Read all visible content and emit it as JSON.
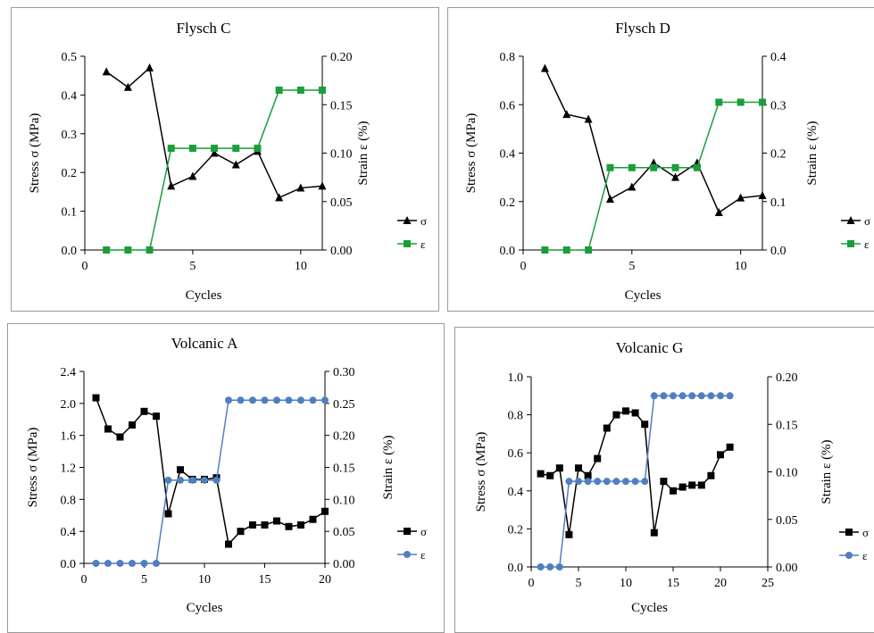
{
  "charts": [
    {
      "title": "Flysch C",
      "xlabel": "Cycles",
      "ylabel": "Stress σ (MPa)",
      "y2label": "Strain ε (%)",
      "xticks": [
        "0",
        "5",
        "10"
      ],
      "yticks": [
        "0.0",
        "0.1",
        "0.2",
        "0.3",
        "0.4",
        "0.5"
      ],
      "y2ticks": [
        "0.00",
        "0.05",
        "0.10",
        "0.15",
        "0.20"
      ],
      "legend": [
        "σ",
        "ε"
      ],
      "strain_color": "#1a9e3c"
    },
    {
      "title": "Flysch D",
      "xlabel": "Cycles",
      "ylabel": "Stress σ (MPa)",
      "y2label": "Strain ε (%)",
      "xticks": [
        "0",
        "5",
        "10"
      ],
      "yticks": [
        "0.0",
        "0.2",
        "0.4",
        "0.6",
        "0.8"
      ],
      "y2ticks": [
        "0.0",
        "0.1",
        "0.2",
        "0.3",
        "0.4"
      ],
      "legend": [
        "σ",
        "ε"
      ],
      "strain_color": "#1a9e3c"
    },
    {
      "title": "Volcanic A",
      "xlabel": "Cycles",
      "ylabel": "Stress σ (MPa)",
      "y2label": "Strain ε (%)",
      "xticks": [
        "0",
        "5",
        "10",
        "15",
        "20"
      ],
      "yticks": [
        "0.0",
        "0.4",
        "0.8",
        "1.2",
        "1.6",
        "2.0",
        "2.4"
      ],
      "y2ticks": [
        "0.00",
        "0.05",
        "0.10",
        "0.15",
        "0.20",
        "0.25",
        "0.30"
      ],
      "legend": [
        "σ",
        "ε"
      ],
      "strain_color": "#4f7fc1"
    },
    {
      "title": "Volcanic G",
      "xlabel": "Cycles",
      "ylabel": "Stress σ (MPa)",
      "y2label": "Strain ε (%)",
      "xticks": [
        "0",
        "5",
        "10",
        "15",
        "20",
        "25"
      ],
      "yticks": [
        "0.0",
        "0.2",
        "0.4",
        "0.6",
        "0.8",
        "1.0"
      ],
      "y2ticks": [
        "0.00",
        "0.05",
        "0.10",
        "0.15",
        "0.20"
      ],
      "legend": [
        "σ",
        "ε"
      ],
      "strain_color": "#4f7fc1"
    }
  ],
  "chart_data": [
    {
      "type": "line",
      "title": "Flysch C",
      "xlabel": "Cycles",
      "ylabel": "Stress σ (MPa)",
      "y2label": "Strain ε (%)",
      "xlim": [
        0,
        11
      ],
      "ylim": [
        0,
        0.5
      ],
      "y2lim": [
        0,
        0.2
      ],
      "grid": false,
      "legend_position": "right",
      "series": [
        {
          "name": "σ",
          "axis": "left",
          "marker": "triangle",
          "color": "#000000",
          "x": [
            1,
            2,
            3,
            4,
            5,
            6,
            7,
            8,
            9,
            10,
            11
          ],
          "y": [
            0.46,
            0.42,
            0.47,
            0.165,
            0.19,
            0.25,
            0.22,
            0.255,
            0.135,
            0.16,
            0.165
          ]
        },
        {
          "name": "ε",
          "axis": "right",
          "marker": "square",
          "color": "#1a9e3c",
          "x": [
            1,
            2,
            3,
            4,
            5,
            6,
            7,
            8,
            9,
            10,
            11
          ],
          "y": [
            0,
            0,
            0,
            0.105,
            0.105,
            0.105,
            0.105,
            0.105,
            0.165,
            0.165,
            0.165
          ]
        }
      ]
    },
    {
      "type": "line",
      "title": "Flysch D",
      "xlabel": "Cycles",
      "ylabel": "Stress σ (MPa)",
      "y2label": "Strain ε (%)",
      "xlim": [
        0,
        11
      ],
      "ylim": [
        0,
        0.8
      ],
      "y2lim": [
        0,
        0.4
      ],
      "grid": false,
      "legend_position": "right",
      "series": [
        {
          "name": "σ",
          "axis": "left",
          "marker": "triangle",
          "color": "#000000",
          "x": [
            1,
            2,
            3,
            4,
            5,
            6,
            7,
            8,
            9,
            10,
            11
          ],
          "y": [
            0.75,
            0.56,
            0.54,
            0.21,
            0.26,
            0.36,
            0.3,
            0.36,
            0.155,
            0.215,
            0.225
          ]
        },
        {
          "name": "ε",
          "axis": "right",
          "marker": "square",
          "color": "#1a9e3c",
          "x": [
            1,
            2,
            3,
            4,
            5,
            6,
            7,
            8,
            9,
            10,
            11
          ],
          "y": [
            0,
            0,
            0,
            0.17,
            0.17,
            0.17,
            0.17,
            0.17,
            0.305,
            0.305,
            0.305
          ]
        }
      ]
    },
    {
      "type": "line",
      "title": "Volcanic A",
      "xlabel": "Cycles",
      "ylabel": "Stress σ (MPa)",
      "y2label": "Strain ε (%)",
      "xlim": [
        0,
        20
      ],
      "ylim": [
        0,
        2.4
      ],
      "y2lim": [
        0,
        0.3
      ],
      "grid": false,
      "legend_position": "right",
      "series": [
        {
          "name": "σ",
          "axis": "left",
          "marker": "square",
          "color": "#000000",
          "x": [
            1,
            2,
            3,
            4,
            5,
            6,
            7,
            8,
            9,
            10,
            11,
            12,
            13,
            14,
            15,
            16,
            17,
            18,
            19,
            20
          ],
          "y": [
            2.07,
            1.68,
            1.58,
            1.73,
            1.9,
            1.84,
            0.62,
            1.17,
            1.05,
            1.05,
            1.07,
            0.24,
            0.4,
            0.48,
            0.48,
            0.53,
            0.46,
            0.48,
            0.55,
            0.65
          ]
        },
        {
          "name": "ε",
          "axis": "right",
          "marker": "circle",
          "color": "#4f7fc1",
          "x": [
            1,
            2,
            3,
            4,
            5,
            6,
            7,
            8,
            9,
            10,
            11,
            12,
            13,
            14,
            15,
            16,
            17,
            18,
            19,
            20
          ],
          "y": [
            0,
            0,
            0,
            0,
            0,
            0,
            0.13,
            0.13,
            0.13,
            0.13,
            0.13,
            0.255,
            0.255,
            0.255,
            0.255,
            0.255,
            0.255,
            0.255,
            0.255,
            0.255
          ]
        }
      ]
    },
    {
      "type": "line",
      "title": "Volcanic G",
      "xlabel": "Cycles",
      "ylabel": "Stress σ (MPa)",
      "y2label": "Strain ε (%)",
      "xlim": [
        0,
        25
      ],
      "ylim": [
        0,
        1.0
      ],
      "y2lim": [
        0,
        0.2
      ],
      "grid": false,
      "legend_position": "right",
      "series": [
        {
          "name": "σ",
          "axis": "left",
          "marker": "square",
          "color": "#000000",
          "x": [
            1,
            2,
            3,
            4,
            5,
            6,
            7,
            8,
            9,
            10,
            11,
            12,
            13,
            14,
            15,
            16,
            17,
            18,
            19,
            20,
            21
          ],
          "y": [
            0.49,
            0.48,
            0.52,
            0.17,
            0.52,
            0.48,
            0.57,
            0.73,
            0.8,
            0.82,
            0.81,
            0.75,
            0.18,
            0.45,
            0.4,
            0.42,
            0.43,
            0.43,
            0.48,
            0.59,
            0.63
          ]
        },
        {
          "name": "ε",
          "axis": "right",
          "marker": "circle",
          "color": "#4f7fc1",
          "x": [
            1,
            2,
            3,
            4,
            5,
            6,
            7,
            8,
            9,
            10,
            11,
            12,
            13,
            14,
            15,
            16,
            17,
            18,
            19,
            20,
            21
          ],
          "y": [
            0,
            0,
            0,
            0.09,
            0.09,
            0.09,
            0.09,
            0.09,
            0.09,
            0.09,
            0.09,
            0.09,
            0.18,
            0.18,
            0.18,
            0.18,
            0.18,
            0.18,
            0.18,
            0.18,
            0.18
          ]
        }
      ]
    }
  ]
}
